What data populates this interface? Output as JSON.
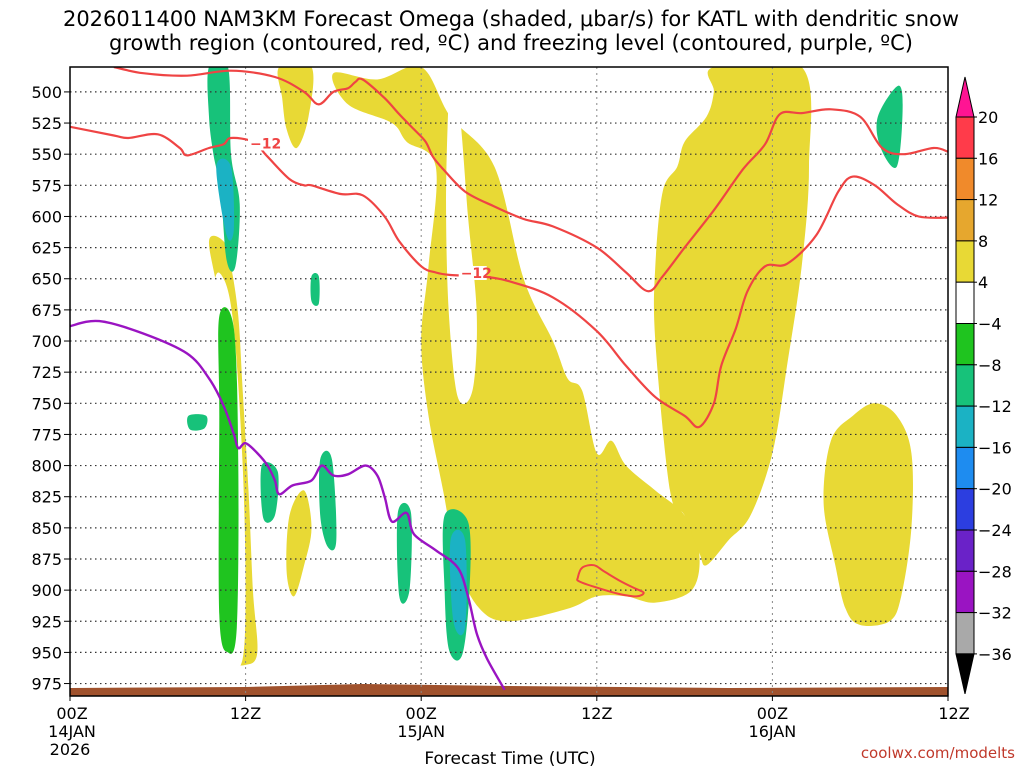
{
  "chart_data": {
    "type": "heatmap",
    "title_line1": "2026011400 NAM3KM Forecast Omega (shaded, μbar/s) for KATL with dendritic snow",
    "title_line2": "growth region (contoured, red, ºC) and freezing level (contoured, purple, ºC)",
    "xlabel": "Forecast Time (UTC)",
    "credit": "coolwx.com/modelts",
    "y_axis": {
      "range": [
        480,
        985
      ],
      "ticks": [
        500,
        525,
        550,
        575,
        600,
        625,
        650,
        675,
        700,
        725,
        750,
        775,
        800,
        825,
        850,
        875,
        900,
        925,
        950,
        975
      ]
    },
    "x_axis": {
      "range": [
        0,
        60
      ],
      "ticks": [
        {
          "hour": 0,
          "label": "00Z",
          "date": "14JAN",
          "year": "2026"
        },
        {
          "hour": 12,
          "label": "12Z",
          "date": "",
          "year": ""
        },
        {
          "hour": 24,
          "label": "00Z",
          "date": "15JAN",
          "year": ""
        },
        {
          "hour": 36,
          "label": "12Z",
          "date": "",
          "year": ""
        },
        {
          "hour": 48,
          "label": "00Z",
          "date": "16JAN",
          "year": ""
        },
        {
          "hour": 60,
          "label": "12Z",
          "date": "",
          "year": ""
        }
      ]
    },
    "colorbar": {
      "labels": [
        "20",
        "16",
        "12",
        "8",
        "4",
        "−4",
        "−8",
        "−12",
        "−16",
        "−20",
        "−24",
        "−28",
        "−32",
        "−36"
      ],
      "bins": [
        {
          "from": 16,
          "to": 20,
          "color": "#ff3b4a"
        },
        {
          "from": 12,
          "to": 16,
          "color": "#f08a2b"
        },
        {
          "from": 8,
          "to": 12,
          "color": "#e6a72e"
        },
        {
          "from": 4,
          "to": 8,
          "color": "#e8d935"
        },
        {
          "from": -4,
          "to": 4,
          "color": "#ffffff"
        },
        {
          "from": -8,
          "to": -4,
          "color": "#1fc41f"
        },
        {
          "from": -12,
          "to": -8,
          "color": "#17c27a"
        },
        {
          "from": -16,
          "to": -12,
          "color": "#1bb2c4"
        },
        {
          "from": -20,
          "to": -16,
          "color": "#1e8cf0"
        },
        {
          "from": -24,
          "to": -20,
          "color": "#2c3ee0"
        },
        {
          "from": -28,
          "to": -24,
          "color": "#6a22c8"
        },
        {
          "from": -32,
          "to": -28,
          "color": "#9a14c2"
        },
        {
          "from": -36,
          "to": -32,
          "color": "#a9a9a9"
        }
      ],
      "over_color": "#ff1493",
      "under_color": "#000000"
    },
    "contour_labels": [
      {
        "text": "−12",
        "hour": 12.3,
        "p": 543
      },
      {
        "text": "−12",
        "hour": 26.7,
        "p": 647
      }
    ],
    "freezing_level": [
      [
        0,
        688
      ],
      [
        2,
        684
      ],
      [
        5,
        694
      ],
      [
        8,
        710
      ],
      [
        9.5,
        730
      ],
      [
        10.5,
        752
      ],
      [
        11.2,
        775
      ],
      [
        11.5,
        786
      ],
      [
        12,
        782
      ],
      [
        12.8,
        790
      ],
      [
        13.5,
        800
      ],
      [
        14,
        812
      ],
      [
        14.3,
        823
      ],
      [
        15.2,
        816
      ],
      [
        16.5,
        812
      ],
      [
        17.2,
        800
      ],
      [
        18,
        808
      ],
      [
        19,
        807
      ],
      [
        20.2,
        800
      ],
      [
        21,
        808
      ],
      [
        21.5,
        825
      ],
      [
        22,
        845
      ],
      [
        23,
        838
      ],
      [
        23.5,
        855
      ],
      [
        25,
        868
      ],
      [
        26.5,
        882
      ],
      [
        27.2,
        905
      ],
      [
        27.8,
        935
      ],
      [
        28.5,
        955
      ],
      [
        29.7,
        980
      ]
    ],
    "isotherm_upper": [
      [
        3,
        480
      ],
      [
        5,
        485
      ],
      [
        8,
        487
      ],
      [
        11,
        483
      ],
      [
        14,
        488
      ],
      [
        16,
        500
      ],
      [
        17,
        510
      ],
      [
        18,
        500
      ],
      [
        19,
        497
      ],
      [
        19.5,
        492
      ],
      [
        20,
        490
      ],
      [
        21.5,
        505
      ],
      [
        22.5,
        518
      ],
      [
        23.5,
        530
      ],
      [
        24.3,
        540
      ],
      [
        24.8,
        552
      ],
      [
        25.5,
        562
      ],
      [
        27,
        580
      ],
      [
        29,
        592
      ],
      [
        31,
        602
      ],
      [
        33,
        608
      ],
      [
        36,
        625
      ],
      [
        38,
        645
      ],
      [
        39.5,
        660
      ],
      [
        40.5,
        648
      ],
      [
        42,
        625
      ],
      [
        44,
        595
      ],
      [
        46,
        562
      ],
      [
        47.5,
        542
      ],
      [
        48.5,
        518
      ],
      [
        50,
        517
      ],
      [
        52,
        514
      ],
      [
        54,
        520
      ],
      [
        55.5,
        545
      ],
      [
        57,
        550
      ],
      [
        59,
        545
      ],
      [
        60,
        548
      ]
    ],
    "isotherm_lower": [
      [
        0,
        528
      ],
      [
        3,
        535
      ],
      [
        4,
        537
      ],
      [
        6,
        534
      ],
      [
        7.5,
        545
      ],
      [
        8,
        551
      ],
      [
        9.5,
        545
      ],
      [
        10.5,
        542
      ],
      [
        11,
        537
      ],
      [
        12.5,
        540
      ],
      [
        13.5,
        552
      ],
      [
        15,
        570
      ],
      [
        16,
        575
      ],
      [
        16.5,
        575
      ],
      [
        18.5,
        582
      ],
      [
        20,
        583
      ],
      [
        21.5,
        600
      ],
      [
        22.5,
        620
      ],
      [
        24,
        640
      ],
      [
        25,
        645
      ],
      [
        26,
        647
      ],
      [
        28,
        648
      ],
      [
        30,
        652
      ],
      [
        33,
        665
      ],
      [
        36,
        692
      ],
      [
        38,
        720
      ],
      [
        40,
        745
      ],
      [
        42,
        760
      ],
      [
        43,
        769
      ],
      [
        44,
        750
      ],
      [
        44.5,
        720
      ],
      [
        45.5,
        690
      ],
      [
        46.3,
        660
      ],
      [
        47.5,
        640
      ],
      [
        49,
        638
      ],
      [
        51,
        615
      ],
      [
        52.5,
        580
      ],
      [
        53.5,
        568
      ],
      [
        55,
        575
      ],
      [
        56.5,
        590
      ],
      [
        58,
        600
      ],
      [
        60,
        601
      ]
    ],
    "dgz_blob": [
      [
        34.7,
        890
      ],
      [
        35,
        882
      ],
      [
        35.8,
        880
      ],
      [
        36.5,
        885
      ],
      [
        37.5,
        892
      ],
      [
        38.5,
        898
      ],
      [
        39.2,
        902
      ],
      [
        38.7,
        905
      ],
      [
        37.5,
        903
      ],
      [
        36,
        898
      ],
      [
        34.8,
        893
      ]
    ],
    "omega_regions": [
      {
        "bin": 3,
        "pts": [
          [
            18,
            485
          ],
          [
            21,
            490
          ],
          [
            24,
            480
          ],
          [
            26,
            520
          ],
          [
            29,
            560
          ],
          [
            31,
            650
          ],
          [
            33,
            700
          ],
          [
            34,
            730
          ],
          [
            35,
            740
          ],
          [
            36,
            790
          ],
          [
            37,
            780
          ],
          [
            38,
            800
          ],
          [
            40,
            820
          ],
          [
            42,
            840
          ],
          [
            43,
            870
          ],
          [
            42.5,
            900
          ],
          [
            40,
            910
          ],
          [
            38,
            905
          ],
          [
            36,
            905
          ],
          [
            34,
            915
          ],
          [
            30,
            925
          ],
          [
            28,
            915
          ],
          [
            26.5,
            880
          ],
          [
            25.5,
            820
          ],
          [
            24.5,
            760
          ],
          [
            24,
            700
          ],
          [
            24.5,
            640
          ],
          [
            25,
            560
          ],
          [
            23,
            540
          ],
          [
            22,
            525
          ],
          [
            19,
            510
          ]
        ]
      },
      {
        "bin": 3,
        "pts": [
          [
            44,
            480
          ],
          [
            50,
            480
          ],
          [
            50.5,
            560
          ],
          [
            50,
            640
          ],
          [
            49,
            720
          ],
          [
            48,
            790
          ],
          [
            46.5,
            840
          ],
          [
            45,
            860
          ],
          [
            43.5,
            880
          ],
          [
            43,
            870
          ],
          [
            42,
            840
          ],
          [
            41,
            820
          ],
          [
            40,
            700
          ],
          [
            40,
            640
          ],
          [
            40.5,
            580
          ],
          [
            41.5,
            560
          ],
          [
            42,
            540
          ],
          [
            43.5,
            520
          ],
          [
            44,
            500
          ]
        ]
      },
      {
        "bin": 3,
        "pts": [
          [
            52,
            780
          ],
          [
            53.5,
            760
          ],
          [
            55,
            750
          ],
          [
            56.5,
            760
          ],
          [
            57.5,
            790
          ],
          [
            57.5,
            850
          ],
          [
            56.8,
            905
          ],
          [
            56,
            925
          ],
          [
            54,
            928
          ],
          [
            53,
            915
          ],
          [
            52.3,
            880
          ],
          [
            51.5,
            830
          ]
        ]
      },
      {
        "bin": 3,
        "pts": [
          [
            9.5,
            620
          ],
          [
            10.2,
            670
          ],
          [
            10.5,
            740
          ],
          [
            10.8,
            800
          ],
          [
            11,
            860
          ],
          [
            10.5,
            920
          ],
          [
            11,
            955
          ],
          [
            12,
            960
          ],
          [
            12.8,
            950
          ],
          [
            12.5,
            900
          ],
          [
            12.2,
            820
          ],
          [
            11.8,
            740
          ],
          [
            11.5,
            680
          ],
          [
            11,
            640
          ],
          [
            10.5,
            620
          ]
        ]
      },
      {
        "bin": 3,
        "pts": [
          [
            14.3,
            480
          ],
          [
            16.5,
            480
          ],
          [
            16.3,
            520
          ],
          [
            15.5,
            545
          ],
          [
            14.8,
            530
          ],
          [
            14.5,
            505
          ]
        ]
      },
      {
        "bin": 3,
        "pts": [
          [
            15,
            840
          ],
          [
            16,
            820
          ],
          [
            16.5,
            850
          ],
          [
            16,
            880
          ],
          [
            15.3,
            905
          ],
          [
            14.8,
            885
          ]
        ]
      },
      {
        "bin": 4,
        "pts": [
          [
            9.8,
            660
          ],
          [
            10.5,
            650
          ],
          [
            11.2,
            690
          ],
          [
            11.8,
            800
          ],
          [
            12,
            900
          ],
          [
            11.8,
            955
          ],
          [
            11,
            962
          ],
          [
            10.3,
            945
          ],
          [
            9.8,
            880
          ],
          [
            9.6,
            780
          ]
        ]
      },
      {
        "bin": 4,
        "pts": [
          [
            26,
            500
          ],
          [
            26.6,
            515
          ],
          [
            27.2,
            600
          ],
          [
            27.8,
            680
          ],
          [
            27.5,
            740
          ],
          [
            26.5,
            745
          ],
          [
            25.9,
            680
          ],
          [
            25.7,
            600
          ],
          [
            25.8,
            530
          ]
        ]
      },
      {
        "bin": 5,
        "pts": [
          [
            10.2,
            680
          ],
          [
            11.2,
            690
          ],
          [
            11.5,
            800
          ],
          [
            11.4,
            930
          ],
          [
            10.8,
            950
          ],
          [
            10.2,
            920
          ],
          [
            10.2,
            760
          ]
        ]
      },
      {
        "bin": 6,
        "pts": [
          [
            9.5,
            480
          ],
          [
            10.8,
            480
          ],
          [
            11,
            550
          ],
          [
            11.6,
            590
          ],
          [
            11.3,
            640
          ],
          [
            10.7,
            635
          ],
          [
            10.3,
            580
          ],
          [
            9.8,
            550
          ],
          [
            9.5,
            520
          ]
        ]
      },
      {
        "bin": 6,
        "pts": [
          [
            25.6,
            840
          ],
          [
            27.2,
            845
          ],
          [
            27.3,
            900
          ],
          [
            26.8,
            952
          ],
          [
            25.9,
            948
          ],
          [
            25.6,
            900
          ]
        ]
      },
      {
        "bin": 6,
        "pts": [
          [
            13.1,
            800
          ],
          [
            14.2,
            805
          ],
          [
            14,
            840
          ],
          [
            13.2,
            842
          ]
        ]
      },
      {
        "bin": 6,
        "pts": [
          [
            17.1,
            795
          ],
          [
            17.9,
            795
          ],
          [
            18.2,
            860
          ],
          [
            17.6,
            865
          ],
          [
            17.1,
            840
          ]
        ]
      },
      {
        "bin": 6,
        "pts": [
          [
            22.4,
            838
          ],
          [
            23.3,
            838
          ],
          [
            23.2,
            900
          ],
          [
            22.5,
            905
          ]
        ]
      },
      {
        "bin": 6,
        "pts": [
          [
            55.2,
            520
          ],
          [
            56.6,
            495
          ],
          [
            56.9,
            515
          ],
          [
            56.5,
            560
          ],
          [
            55.4,
            545
          ]
        ]
      },
      {
        "bin": 6,
        "pts": [
          [
            8.1,
            760
          ],
          [
            9.3,
            760
          ],
          [
            9.2,
            770
          ],
          [
            8.2,
            771
          ]
        ]
      },
      {
        "bin": 6,
        "pts": [
          [
            16.5,
            648
          ],
          [
            17,
            648
          ],
          [
            17,
            670
          ],
          [
            16.5,
            668
          ]
        ]
      },
      {
        "bin": 7,
        "pts": [
          [
            10,
            560
          ],
          [
            11,
            560
          ],
          [
            11.2,
            610
          ],
          [
            10.7,
            615
          ]
        ]
      },
      {
        "bin": 7,
        "pts": [
          [
            26,
            860
          ],
          [
            27,
            860
          ],
          [
            27,
            930
          ],
          [
            26.2,
            925
          ]
        ]
      }
    ]
  }
}
